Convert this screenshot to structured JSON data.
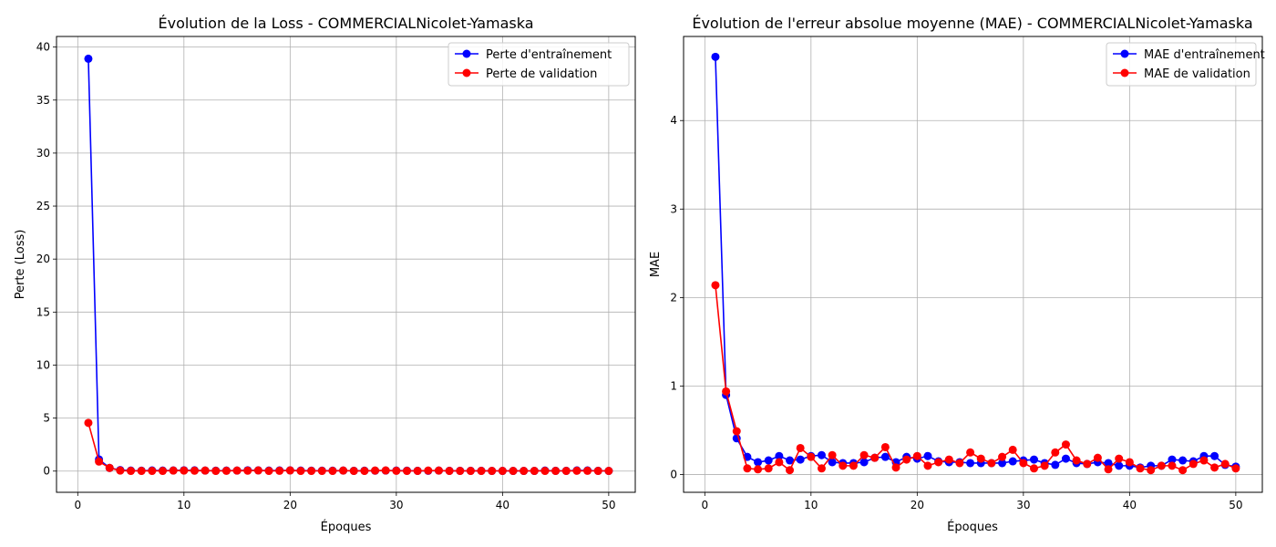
{
  "chart_data": [
    {
      "type": "line",
      "title": "Évolution de la Loss - COMMERCIALNicolet-Yamaska",
      "xlabel": "Époques",
      "ylabel": "Perte (Loss)",
      "xlim": [
        -2,
        52.5
      ],
      "ylim": [
        -2,
        41
      ],
      "xticks": [
        0,
        10,
        20,
        30,
        40,
        50
      ],
      "yticks": [
        0,
        5,
        10,
        15,
        20,
        25,
        30,
        35,
        40
      ],
      "grid": true,
      "legend_position": "top-right",
      "x": [
        1,
        2,
        3,
        4,
        5,
        6,
        7,
        8,
        9,
        10,
        11,
        12,
        13,
        14,
        15,
        16,
        17,
        18,
        19,
        20,
        21,
        22,
        23,
        24,
        25,
        26,
        27,
        28,
        29,
        30,
        31,
        32,
        33,
        34,
        35,
        36,
        37,
        38,
        39,
        40,
        41,
        42,
        43,
        44,
        45,
        46,
        47,
        48,
        49,
        50
      ],
      "series": [
        {
          "name": "Perte d'entraînement",
          "color": "#0000ff",
          "values": [
            38.9,
            1.1,
            0.3,
            0.1,
            0.05,
            0.04,
            0.06,
            0.05,
            0.06,
            0.08,
            0.07,
            0.05,
            0.04,
            0.05,
            0.05,
            0.08,
            0.07,
            0.05,
            0.06,
            0.07,
            0.05,
            0.04,
            0.04,
            0.04,
            0.05,
            0.03,
            0.04,
            0.04,
            0.05,
            0.05,
            0.04,
            0.03,
            0.03,
            0.05,
            0.03,
            0.03,
            0.03,
            0.03,
            0.02,
            0.02,
            0.02,
            0.02,
            0.02,
            0.05,
            0.03,
            0.03,
            0.06,
            0.06,
            0.03,
            0.02
          ]
        },
        {
          "name": "Perte de validation",
          "color": "#ff0000",
          "values": [
            4.55,
            0.9,
            0.3,
            0.05,
            0.02,
            0.02,
            0.02,
            0.02,
            0.05,
            0.05,
            0.04,
            0.05,
            0.02,
            0.03,
            0.05,
            0.04,
            0.06,
            0.02,
            0.03,
            0.06,
            0.02,
            0.02,
            0.02,
            0.02,
            0.05,
            0.02,
            0.02,
            0.05,
            0.06,
            0.03,
            0.02,
            0.02,
            0.05,
            0.05,
            0.02,
            0.02,
            0.02,
            0.02,
            0.02,
            0.02,
            0.02,
            0.02,
            0.02,
            0.02,
            0.02,
            0.02,
            0.03,
            0.03,
            0.02,
            0.02
          ]
        }
      ]
    },
    {
      "type": "line",
      "title": "Évolution de l'erreur absolue moyenne (MAE) - COMMERCIALNicolet-Yamaska",
      "xlabel": "Époques",
      "ylabel": "MAE",
      "xlim": [
        -2,
        52.5
      ],
      "ylim": [
        -0.2,
        4.95
      ],
      "xticks": [
        0,
        10,
        20,
        30,
        40,
        50
      ],
      "yticks": [
        0,
        1,
        2,
        3,
        4
      ],
      "grid": true,
      "legend_position": "top-right",
      "x": [
        1,
        2,
        3,
        4,
        5,
        6,
        7,
        8,
        9,
        10,
        11,
        12,
        13,
        14,
        15,
        16,
        17,
        18,
        19,
        20,
        21,
        22,
        23,
        24,
        25,
        26,
        27,
        28,
        29,
        30,
        31,
        32,
        33,
        34,
        35,
        36,
        37,
        38,
        39,
        40,
        41,
        42,
        43,
        44,
        45,
        46,
        47,
        48,
        49,
        50
      ],
      "series": [
        {
          "name": "MAE d'entraînement",
          "color": "#0000ff",
          "values": [
            4.72,
            0.9,
            0.41,
            0.2,
            0.14,
            0.16,
            0.21,
            0.16,
            0.17,
            0.21,
            0.22,
            0.14,
            0.13,
            0.13,
            0.14,
            0.19,
            0.2,
            0.14,
            0.2,
            0.18,
            0.21,
            0.15,
            0.14,
            0.14,
            0.13,
            0.13,
            0.13,
            0.13,
            0.15,
            0.16,
            0.17,
            0.13,
            0.11,
            0.18,
            0.13,
            0.12,
            0.14,
            0.13,
            0.1,
            0.1,
            0.08,
            0.1,
            0.1,
            0.17,
            0.16,
            0.15,
            0.21,
            0.21,
            0.11,
            0.09
          ]
        },
        {
          "name": "MAE de validation",
          "color": "#ff0000",
          "values": [
            2.14,
            0.94,
            0.49,
            0.07,
            0.06,
            0.07,
            0.14,
            0.05,
            0.3,
            0.2,
            0.07,
            0.22,
            0.1,
            0.1,
            0.22,
            0.19,
            0.31,
            0.08,
            0.17,
            0.21,
            0.1,
            0.14,
            0.17,
            0.13,
            0.25,
            0.18,
            0.13,
            0.2,
            0.28,
            0.13,
            0.07,
            0.1,
            0.25,
            0.34,
            0.16,
            0.12,
            0.19,
            0.06,
            0.18,
            0.14,
            0.07,
            0.05,
            0.1,
            0.1,
            0.05,
            0.12,
            0.16,
            0.08,
            0.12,
            0.07
          ]
        }
      ]
    }
  ]
}
